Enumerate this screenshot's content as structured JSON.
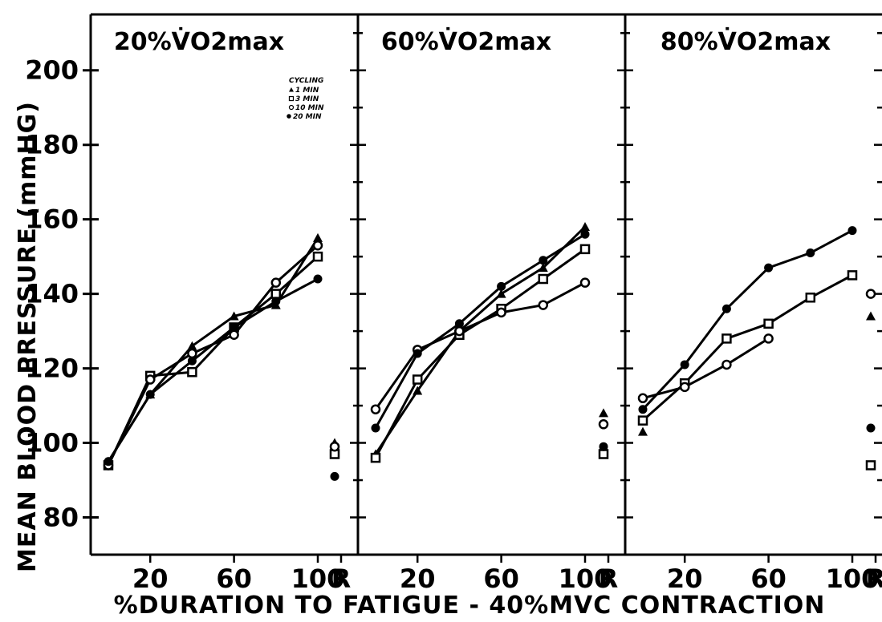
{
  "chart_data": [
    {
      "type": "line",
      "title": "20%V̇O2max",
      "ylabel": "MEAN BLOOD PRESSURE (mmHG)",
      "xlabel": "%DURATION TO FATIGUE - 40%MVC CONTRACTION",
      "x_ticks": [
        "20",
        "60",
        "100",
        "R"
      ],
      "y_ticks": [
        80,
        100,
        120,
        140,
        160,
        180,
        200
      ],
      "ylim": [
        70,
        215
      ],
      "legend": {
        "title": "CYCLING",
        "entries": [
          "1 MIN",
          "3 MIN",
          "10 MIN",
          "20 MIN"
        ]
      },
      "series": [
        {
          "name": "1 MIN",
          "marker": "triangle",
          "x": [
            0,
            20,
            40,
            60,
            80,
            100
          ],
          "y": [
            95,
            113,
            126,
            134,
            137,
            155
          ],
          "rest": 100
        },
        {
          "name": "3 MIN",
          "marker": "square",
          "x": [
            0,
            20,
            40,
            60,
            80,
            100
          ],
          "y": [
            94,
            118,
            119,
            131,
            140,
            150
          ],
          "rest": 97
        },
        {
          "name": "10 MIN",
          "marker": "open-circle",
          "x": [
            0,
            20,
            40,
            60,
            80,
            100
          ],
          "y": [
            94,
            117,
            124,
            129,
            143,
            153
          ],
          "rest": 99
        },
        {
          "name": "20 MIN",
          "marker": "filled-circle",
          "x": [
            0,
            20,
            40,
            60,
            80,
            100
          ],
          "y": [
            95,
            113,
            122,
            131,
            138,
            144
          ],
          "rest": 91
        }
      ]
    },
    {
      "type": "line",
      "title": "60%V̇O2max",
      "x_ticks": [
        "20",
        "60",
        "100",
        "R"
      ],
      "ylim": [
        70,
        215
      ],
      "series": [
        {
          "name": "1 MIN",
          "marker": "triangle",
          "x": [
            0,
            20,
            40,
            60,
            80,
            100
          ],
          "y": [
            97,
            114,
            130,
            140,
            147,
            158
          ],
          "rest": 108
        },
        {
          "name": "3 MIN",
          "marker": "square",
          "x": [
            0,
            20,
            40,
            60,
            80,
            100
          ],
          "y": [
            96,
            117,
            129,
            136,
            144,
            152
          ],
          "rest": 97
        },
        {
          "name": "10 MIN",
          "marker": "open-circle",
          "x": [
            0,
            20,
            40,
            60,
            80,
            100
          ],
          "y": [
            109,
            125,
            130,
            135,
            137,
            143
          ],
          "rest": 105
        },
        {
          "name": "20 MIN",
          "marker": "filled-circle",
          "x": [
            0,
            20,
            40,
            60,
            80,
            100
          ],
          "y": [
            104,
            124,
            132,
            142,
            149,
            156
          ],
          "rest": 99
        }
      ]
    },
    {
      "type": "line",
      "title": "80%V̇O2max",
      "x_ticks": [
        "20",
        "60",
        "100",
        "R"
      ],
      "ylim": [
        70,
        215
      ],
      "series": [
        {
          "name": "1 MIN",
          "marker": "triangle",
          "x": [
            0
          ],
          "y": [
            103
          ],
          "rest": 134
        },
        {
          "name": "3 MIN",
          "marker": "square",
          "x": [
            0,
            20,
            40,
            60,
            80,
            100
          ],
          "y": [
            106,
            116,
            128,
            132,
            139,
            145
          ],
          "rest": 94
        },
        {
          "name": "10 MIN",
          "marker": "open-circle",
          "x": [
            0,
            20,
            40,
            60
          ],
          "y": [
            112,
            115,
            121,
            128
          ],
          "rest": 140
        },
        {
          "name": "20 MIN",
          "marker": "filled-circle",
          "x": [
            0,
            20,
            40,
            60,
            80,
            100
          ],
          "y": [
            109,
            121,
            136,
            147,
            151,
            157
          ],
          "rest": 104
        }
      ]
    }
  ]
}
